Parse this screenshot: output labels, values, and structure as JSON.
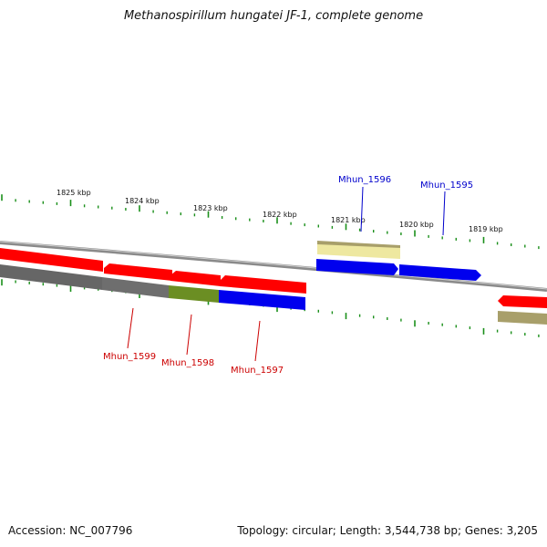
{
  "title": "Methanospirillum hungatei JF-1, complete genome",
  "footer": {
    "accession": "Accession: NC_007796",
    "summary": "Topology: circular; Length: 3,544,738 bp; Genes: 3,205"
  },
  "scale_labels": [
    "1825 kbp",
    "1824 kbp",
    "1823 kbp",
    "1822 kbp",
    "1821 kbp",
    "1820 kbp",
    "1819 kbp"
  ],
  "genes": {
    "forward": [
      {
        "label": "Mhun_1596",
        "color": "#0000cc"
      },
      {
        "label": "Mhun_1595",
        "color": "#0000cc"
      }
    ],
    "reverse": [
      {
        "label": "Mhun_1599",
        "color": "#cc0000"
      },
      {
        "label": "Mhun_1598",
        "color": "#cc0000"
      },
      {
        "label": "Mhun_1597",
        "color": "#cc0000"
      }
    ]
  },
  "colors": {
    "cds_reverse": "#ff0000",
    "cds_forward": "#0000ee",
    "pseudo": "#eee8a0",
    "rna_grey": "#666666",
    "olive": "#6b8e23",
    "khaki": "#a89f6a",
    "tick": "#1a8f1a",
    "backbone": "#888888"
  }
}
